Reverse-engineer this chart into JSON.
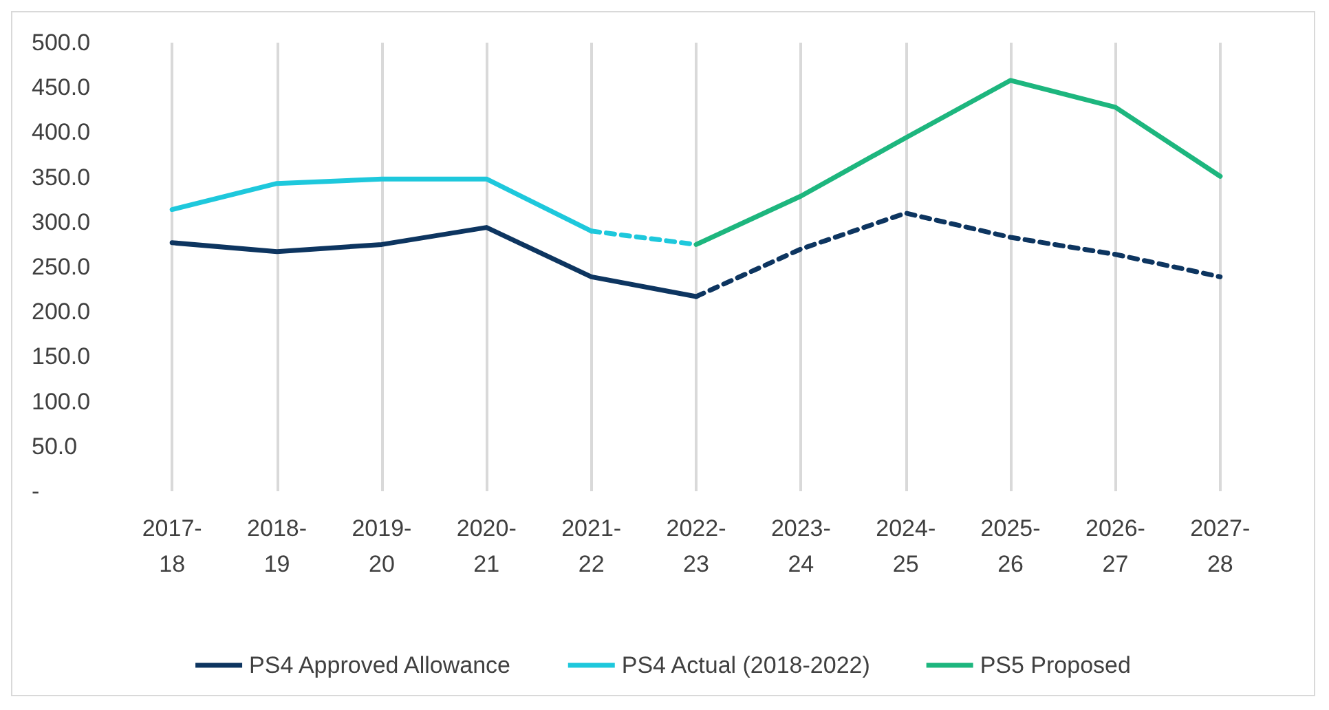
{
  "chart_data": {
    "type": "line",
    "categories": [
      "2017-18",
      "2018-19",
      "2019-20",
      "2020-21",
      "2021-22",
      "2022-23",
      "2023-24",
      "2024-25",
      "2025-26",
      "2026-27",
      "2027-28"
    ],
    "series": [
      {
        "name": "PS4 Approved Allowance",
        "color": "#0d3560",
        "values": [
          277,
          267,
          275,
          294,
          239,
          217,
          null,
          null,
          null,
          null,
          null
        ]
      },
      {
        "color": "#0d3560",
        "line_style": "dashed",
        "values": [
          null,
          null,
          null,
          null,
          null,
          217,
          270,
          310,
          283,
          264,
          239
        ]
      },
      {
        "name": "PS4 Actual (2018-2022)",
        "color": "#1ec8dc",
        "values": [
          314,
          343,
          348,
          348,
          290,
          null,
          null,
          null,
          null,
          null,
          null
        ]
      },
      {
        "color": "#1ec8dc",
        "line_style": "dashed",
        "values": [
          null,
          null,
          null,
          null,
          290,
          275,
          null,
          null,
          null,
          null,
          null
        ]
      },
      {
        "name": "PS5 Proposed",
        "color": "#1db67e",
        "values": [
          null,
          null,
          null,
          null,
          null,
          275,
          329,
          394,
          458,
          428,
          351
        ]
      }
    ],
    "ylim": [
      0,
      500
    ],
    "yticks": [
      {
        "value": 0,
        "label": "-"
      },
      {
        "value": 50,
        "label": "50.0"
      },
      {
        "value": 100,
        "label": "100.0"
      },
      {
        "value": 150,
        "label": "150.0"
      },
      {
        "value": 200,
        "label": "200.0"
      },
      {
        "value": 250,
        "label": "250.0"
      },
      {
        "value": 300,
        "label": "300.0"
      },
      {
        "value": 350,
        "label": "350.0"
      },
      {
        "value": 400,
        "label": "400.0"
      },
      {
        "value": 450,
        "label": "450.0"
      },
      {
        "value": 500,
        "label": "500.0"
      }
    ],
    "grid": "x",
    "legend": "bottom",
    "marker": "none",
    "line_style": "solid"
  }
}
